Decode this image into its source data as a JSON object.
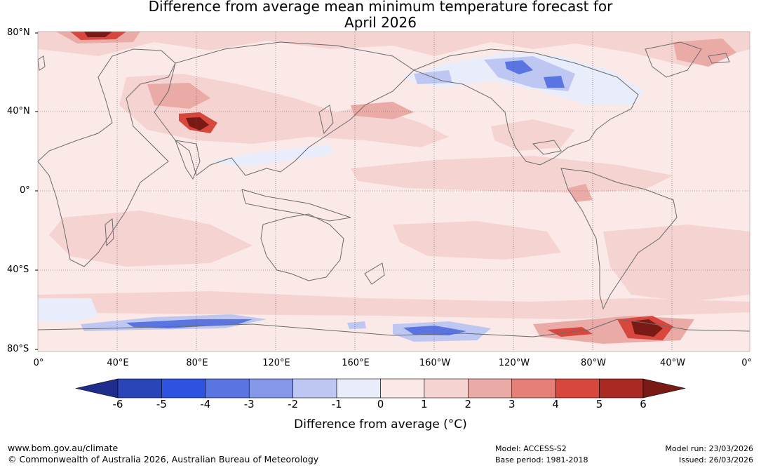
{
  "title": {
    "line1": "Difference from average mean minimum temperature forecast for",
    "line2": "April 2026"
  },
  "lat_labels": [
    "80°N",
    "40°N",
    "0°",
    "40°S",
    "80°S"
  ],
  "lon_labels": [
    "0°",
    "40°E",
    "80°E",
    "120°E",
    "160°E",
    "160°W",
    "120°W",
    "80°W",
    "40°W",
    "0°"
  ],
  "colorbar": {
    "ticks": [
      "-6",
      "-5",
      "-4",
      "-3",
      "-2",
      "-1",
      "0",
      "1",
      "2",
      "3",
      "4",
      "5",
      "6"
    ],
    "colors": [
      "#1f2d8c",
      "#2a45b8",
      "#2f53e0",
      "#5a74e2",
      "#8597e9",
      "#bec7f2",
      "#e9ecfa",
      "#fbe9e8",
      "#f4d3d1",
      "#eaaaa6",
      "#e57f78",
      "#d8473d",
      "#a82a22",
      "#7a1a15"
    ],
    "label": "Difference from average (°C)"
  },
  "map_colors": {
    "ocean_base": "#fbe9e8",
    "warm1": "#f4d3d1",
    "warm2": "#eaaaa6",
    "warm3": "#d8473d",
    "warm4": "#7a1a15",
    "cool1": "#e9ecfa",
    "cool2": "#bec7f2",
    "cool3": "#5a74e2",
    "coast": "#6b6b6b"
  },
  "footer": {
    "website": "www.bom.gov.au/climate",
    "copyright": "© Commonwealth of Australia 2026, Australian Bureau of Meteorology",
    "model": "Model: ACCESS-S2",
    "base_period": "Base period: 1981-2018",
    "model_run": "Model run: 23/03/2026",
    "issued": "Issued: 26/03/2026"
  }
}
